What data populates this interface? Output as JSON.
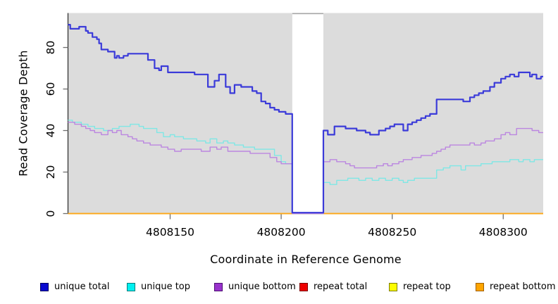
{
  "figure": {
    "background": "#ffffff",
    "panel_bg": "#dcdcdc",
    "axis_color": "#333333",
    "tick_color": "#6e6e6e",
    "masked_region_border": "#a6a6a6"
  },
  "chart_data": {
    "type": "line",
    "style": "step",
    "title": "",
    "xlabel": "Coordinate in Reference Genome",
    "ylabel": "Read Coverage Depth",
    "xlim": [
      4808104,
      4808318
    ],
    "ylim": [
      0,
      96.5
    ],
    "xticks": [
      4808150,
      4808200,
      4808250,
      4808300
    ],
    "xtick_labels": [
      "4808150",
      "4808200",
      "4808250",
      "4808300"
    ],
    "yticks": [
      0,
      20,
      40,
      60,
      80
    ],
    "ytick_labels": [
      "0",
      "20",
      "40",
      "60",
      "80"
    ],
    "grid": false,
    "legend_position": "bottom",
    "masked_region": {
      "from": 4808205,
      "to": 4808219
    },
    "series": [
      {
        "name": "unique total",
        "key": "unique-total",
        "z": 6,
        "line_width": 2.2,
        "line_color": "#3b3bd9",
        "swatch_fill": "#0a0ad0",
        "swatch_border": "#000060",
        "points": [
          [
            4808104,
            91
          ],
          [
            4808105,
            89
          ],
          [
            4808109,
            90
          ],
          [
            4808112,
            88
          ],
          [
            4808113,
            87
          ],
          [
            4808115,
            85
          ],
          [
            4808117,
            84
          ],
          [
            4808118,
            82
          ],
          [
            4808119,
            79
          ],
          [
            4808122,
            78
          ],
          [
            4808125,
            75
          ],
          [
            4808126,
            76
          ],
          [
            4808127,
            75
          ],
          [
            4808129,
            76
          ],
          [
            4808131,
            77
          ],
          [
            4808140,
            74
          ],
          [
            4808143,
            70
          ],
          [
            4808145,
            69
          ],
          [
            4808146,
            71
          ],
          [
            4808149,
            68
          ],
          [
            4808161,
            67
          ],
          [
            4808167,
            61
          ],
          [
            4808170,
            64
          ],
          [
            4808172,
            67
          ],
          [
            4808175,
            61
          ],
          [
            4808177,
            58
          ],
          [
            4808179,
            62
          ],
          [
            4808182,
            61
          ],
          [
            4808187,
            59
          ],
          [
            4808189,
            58
          ],
          [
            4808191,
            54
          ],
          [
            4808193,
            53
          ],
          [
            4808195,
            51
          ],
          [
            4808197,
            50
          ],
          [
            4808199,
            49
          ],
          [
            4808202,
            48
          ],
          [
            4808205,
            0
          ],
          [
            4808219,
            40
          ],
          [
            4808221,
            38
          ],
          [
            4808224,
            42
          ],
          [
            4808229,
            41
          ],
          [
            4808234,
            40
          ],
          [
            4808238,
            39
          ],
          [
            4808240,
            38
          ],
          [
            4808244,
            40
          ],
          [
            4808247,
            41
          ],
          [
            4808249,
            42
          ],
          [
            4808251,
            43
          ],
          [
            4808255,
            40
          ],
          [
            4808257,
            43
          ],
          [
            4808259,
            44
          ],
          [
            4808261,
            45
          ],
          [
            4808263,
            46
          ],
          [
            4808265,
            47
          ],
          [
            4808267,
            48
          ],
          [
            4808270,
            55
          ],
          [
            4808282,
            54
          ],
          [
            4808285,
            56
          ],
          [
            4808287,
            57
          ],
          [
            4808289,
            58
          ],
          [
            4808291,
            59
          ],
          [
            4808294,
            61
          ],
          [
            4808296,
            63
          ],
          [
            4808299,
            65
          ],
          [
            4808301,
            66
          ],
          [
            4808303,
            67
          ],
          [
            4808305,
            66
          ],
          [
            4808307,
            68
          ],
          [
            4808312,
            66
          ],
          [
            4808313,
            67
          ],
          [
            4808315,
            65
          ],
          [
            4808317,
            66
          ]
        ]
      },
      {
        "name": "unique top",
        "key": "unique-top",
        "z": 4,
        "line_width": 1.4,
        "line_color": "#7fe7e5",
        "swatch_fill": "#00f0f0",
        "swatch_border": "#007d7d",
        "points": [
          [
            4808104,
            45
          ],
          [
            4808106,
            44
          ],
          [
            4808110,
            43
          ],
          [
            4808113,
            42
          ],
          [
            4808116,
            41
          ],
          [
            4808120,
            40
          ],
          [
            4808124,
            41
          ],
          [
            4808127,
            42
          ],
          [
            4808132,
            43
          ],
          [
            4808136,
            42
          ],
          [
            4808138,
            41
          ],
          [
            4808144,
            39
          ],
          [
            4808147,
            37
          ],
          [
            4808150,
            38
          ],
          [
            4808152,
            37
          ],
          [
            4808156,
            36
          ],
          [
            4808162,
            35
          ],
          [
            4808166,
            34
          ],
          [
            4808168,
            36
          ],
          [
            4808171,
            34
          ],
          [
            4808174,
            35
          ],
          [
            4808176,
            34
          ],
          [
            4808179,
            33
          ],
          [
            4808183,
            32
          ],
          [
            4808188,
            31
          ],
          [
            4808197,
            28
          ],
          [
            4808200,
            25
          ],
          [
            4808202,
            24
          ],
          [
            4808205,
            0
          ],
          [
            4808219,
            15
          ],
          [
            4808222,
            14
          ],
          [
            4808225,
            16
          ],
          [
            4808230,
            17
          ],
          [
            4808235,
            16
          ],
          [
            4808238,
            17
          ],
          [
            4808241,
            16
          ],
          [
            4808244,
            17
          ],
          [
            4808247,
            16
          ],
          [
            4808250,
            17
          ],
          [
            4808253,
            16
          ],
          [
            4808255,
            15
          ],
          [
            4808257,
            16
          ],
          [
            4808260,
            17
          ],
          [
            4808270,
            21
          ],
          [
            4808273,
            22
          ],
          [
            4808276,
            23
          ],
          [
            4808281,
            21
          ],
          [
            4808283,
            23
          ],
          [
            4808290,
            24
          ],
          [
            4808295,
            25
          ],
          [
            4808303,
            26
          ],
          [
            4808307,
            25
          ],
          [
            4808309,
            26
          ],
          [
            4808312,
            25
          ],
          [
            4808314,
            26
          ]
        ]
      },
      {
        "name": "unique bottom",
        "key": "unique-bottom",
        "z": 5,
        "line_width": 1.4,
        "line_color": "#bb86e0",
        "swatch_fill": "#9932cc",
        "swatch_border": "#4b0f72",
        "points": [
          [
            4808104,
            44
          ],
          [
            4808107,
            43
          ],
          [
            4808110,
            42
          ],
          [
            4808112,
            41
          ],
          [
            4808114,
            40
          ],
          [
            4808116,
            39
          ],
          [
            4808119,
            38
          ],
          [
            4808122,
            40
          ],
          [
            4808124,
            39
          ],
          [
            4808126,
            40
          ],
          [
            4808128,
            38
          ],
          [
            4808131,
            37
          ],
          [
            4808133,
            36
          ],
          [
            4808135,
            35
          ],
          [
            4808138,
            34
          ],
          [
            4808141,
            33
          ],
          [
            4808146,
            32
          ],
          [
            4808149,
            31
          ],
          [
            4808152,
            30
          ],
          [
            4808155,
            31
          ],
          [
            4808164,
            30
          ],
          [
            4808168,
            32
          ],
          [
            4808171,
            31
          ],
          [
            4808173,
            32
          ],
          [
            4808176,
            30
          ],
          [
            4808186,
            29
          ],
          [
            4808195,
            27
          ],
          [
            4808198,
            25
          ],
          [
            4808200,
            24
          ],
          [
            4808205,
            0
          ],
          [
            4808219,
            25
          ],
          [
            4808222,
            26
          ],
          [
            4808225,
            25
          ],
          [
            4808229,
            24
          ],
          [
            4808231,
            23
          ],
          [
            4808233,
            22
          ],
          [
            4808243,
            23
          ],
          [
            4808246,
            24
          ],
          [
            4808248,
            23
          ],
          [
            4808250,
            24
          ],
          [
            4808253,
            25
          ],
          [
            4808255,
            26
          ],
          [
            4808259,
            27
          ],
          [
            4808263,
            28
          ],
          [
            4808268,
            29
          ],
          [
            4808270,
            30
          ],
          [
            4808272,
            31
          ],
          [
            4808274,
            32
          ],
          [
            4808276,
            33
          ],
          [
            4808285,
            34
          ],
          [
            4808287,
            33
          ],
          [
            4808290,
            34
          ],
          [
            4808292,
            35
          ],
          [
            4808296,
            36
          ],
          [
            4808299,
            38
          ],
          [
            4808301,
            39
          ],
          [
            4808303,
            38
          ],
          [
            4808306,
            41
          ],
          [
            4808313,
            40
          ],
          [
            4808316,
            39
          ]
        ]
      },
      {
        "name": "repeat total",
        "key": "repeat-total",
        "z": 1,
        "line_width": 1.4,
        "line_color": "#e02020",
        "swatch_fill": "#ee0000",
        "swatch_border": "#7a0000",
        "points": [
          [
            4808104,
            0
          ]
        ]
      },
      {
        "name": "repeat top",
        "key": "repeat-top",
        "z": 2,
        "line_width": 1.4,
        "line_color": "#ffff00",
        "swatch_fill": "#fdfd00",
        "swatch_border": "#7d7d00",
        "points": [
          [
            4808104,
            0
          ]
        ]
      },
      {
        "name": "repeat bottom",
        "key": "repeat-bottom",
        "z": 3,
        "line_width": 1.6,
        "line_color": "#ffa516",
        "swatch_fill": "#ffa500",
        "swatch_border": "#a06000",
        "points": [
          [
            4808104,
            0
          ]
        ]
      }
    ]
  }
}
